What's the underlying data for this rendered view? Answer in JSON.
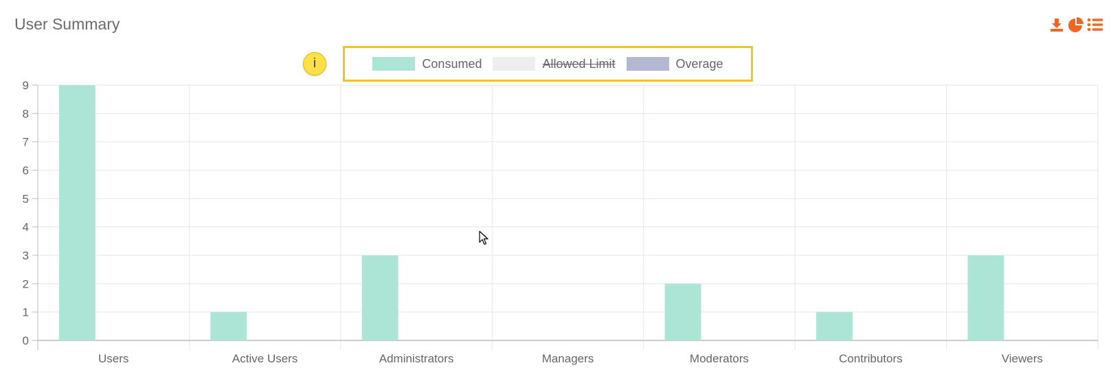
{
  "header": {
    "title": "User Summary"
  },
  "toolbar": {
    "icons": [
      "download-icon",
      "pie-chart-icon",
      "list-icon"
    ],
    "accent": "#f26522"
  },
  "info_badge": {
    "label": "i",
    "color": "#ffe047"
  },
  "legend": {
    "border_color": "#f5c51d",
    "items": [
      {
        "label": "Consumed",
        "color": "#ace4d6",
        "hidden": false
      },
      {
        "label": "Allowed Limit",
        "color": "#eeeeee",
        "hidden": true
      },
      {
        "label": "Overage",
        "color": "#b3b7d2",
        "hidden": false
      }
    ]
  },
  "chart_data": {
    "type": "bar",
    "title": "",
    "xlabel": "",
    "ylabel": "",
    "categories": [
      "Users",
      "Active Users",
      "Administrators",
      "Managers",
      "Moderators",
      "Contributors",
      "Viewers"
    ],
    "series": [
      {
        "name": "Consumed",
        "values": [
          9,
          1,
          3,
          0,
          2,
          1,
          3
        ],
        "color": "#ace4d6"
      },
      {
        "name": "Allowed Limit",
        "values": [
          0,
          0,
          0,
          0,
          0,
          0,
          0
        ],
        "color": "#eeeeee",
        "hidden": true
      },
      {
        "name": "Overage",
        "values": [
          0,
          0,
          0,
          0,
          0,
          0,
          0
        ],
        "color": "#b3b7d2"
      }
    ],
    "ylim": [
      0,
      9
    ],
    "yticks": [
      0,
      1,
      2,
      3,
      4,
      5,
      6,
      7,
      8,
      9
    ],
    "grid": true,
    "legend_position": "top-center"
  }
}
